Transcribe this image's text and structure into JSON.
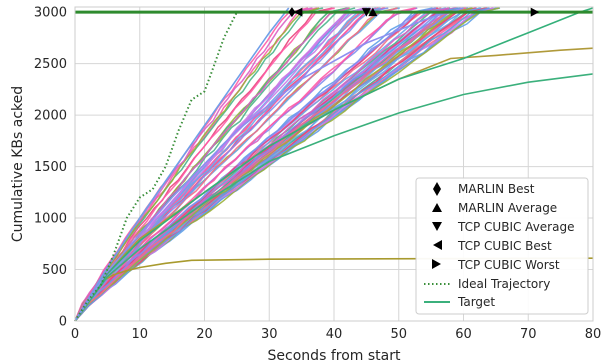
{
  "chart_data": {
    "type": "line",
    "xlabel": "Seconds from start",
    "ylabel": "Cumulative KBs acked",
    "xlim": [
      0,
      80
    ],
    "ylim": [
      0,
      3050
    ],
    "xticks": [
      0,
      10,
      20,
      30,
      40,
      50,
      60,
      70,
      80
    ],
    "yticks": [
      0,
      500,
      1000,
      1500,
      2000,
      2500,
      3000
    ],
    "grid": true,
    "legend_position": "lower-right",
    "target": {
      "name": "Target",
      "y": 3000,
      "color": "#2e8b2e"
    },
    "ideal_trajectory": {
      "name": "Ideal Trajectory",
      "color": "#3a8f3a",
      "points": [
        [
          0,
          0
        ],
        [
          2,
          200
        ],
        [
          4,
          350
        ],
        [
          6,
          650
        ],
        [
          8,
          1000
        ],
        [
          10,
          1200
        ],
        [
          12,
          1280
        ],
        [
          14,
          1500
        ],
        [
          16,
          1850
        ],
        [
          18,
          2150
        ],
        [
          20,
          2230
        ],
        [
          21,
          2400
        ],
        [
          23,
          2750
        ],
        [
          25,
          3000
        ]
      ]
    },
    "markers": [
      {
        "name": "MARLIN Best",
        "shape": "diamond",
        "x": 33.5,
        "y": 3000
      },
      {
        "name": "MARLIN Average",
        "shape": "triangle-up",
        "x": 46.0,
        "y": 3000
      },
      {
        "name": "TCP CUBIC Average",
        "shape": "triangle-down",
        "x": 45.0,
        "y": 3000
      },
      {
        "name": "TCP CUBIC Best",
        "shape": "triangle-left",
        "x": 34.5,
        "y": 3000
      },
      {
        "name": "TCP CUBIC Worst",
        "shape": "triangle-right",
        "x": 71.0,
        "y": 3000
      }
    ],
    "special_series": [
      {
        "color": "#a89a2e",
        "points": [
          [
            0,
            0
          ],
          [
            4,
            380
          ],
          [
            6,
            450
          ],
          [
            8,
            490
          ],
          [
            10,
            520
          ],
          [
            14,
            560
          ],
          [
            18,
            590
          ],
          [
            30,
            600
          ],
          [
            80,
            610
          ]
        ]
      },
      {
        "color": "#b09a3a",
        "points": [
          [
            0,
            0
          ],
          [
            5,
            470
          ],
          [
            10,
            800
          ],
          [
            20,
            1250
          ],
          [
            30,
            1700
          ],
          [
            40,
            2050
          ],
          [
            50,
            2350
          ],
          [
            58,
            2550
          ],
          [
            65,
            2580
          ],
          [
            75,
            2630
          ],
          [
            80,
            2650
          ]
        ]
      },
      {
        "color": "#3bb07c",
        "points": [
          [
            0,
            0
          ],
          [
            5,
            430
          ],
          [
            10,
            700
          ],
          [
            20,
            1150
          ],
          [
            30,
            1550
          ],
          [
            40,
            1800
          ],
          [
            50,
            2020
          ],
          [
            60,
            2200
          ],
          [
            70,
            2320
          ],
          [
            80,
            2400
          ]
        ]
      },
      {
        "color": "#34b07a",
        "points": [
          [
            0,
            0
          ],
          [
            5,
            460
          ],
          [
            10,
            780
          ],
          [
            20,
            1250
          ],
          [
            30,
            1700
          ],
          [
            40,
            2050
          ],
          [
            50,
            2350
          ],
          [
            60,
            2550
          ],
          [
            70,
            2800
          ],
          [
            78,
            3000
          ],
          [
            80,
            3040
          ]
        ]
      },
      {
        "color": "#8c8ff0",
        "points": [
          [
            0,
            0
          ],
          [
            5,
            480
          ],
          [
            15,
            1200
          ],
          [
            25,
            1850
          ],
          [
            35,
            2350
          ],
          [
            45,
            2700
          ],
          [
            55,
            2950
          ],
          [
            60,
            3040
          ]
        ]
      },
      {
        "color": "#6f9fe8",
        "points": [
          [
            0,
            0
          ],
          [
            5,
            520
          ],
          [
            10,
            1000
          ],
          [
            20,
            1900
          ],
          [
            30,
            2800
          ],
          [
            33,
            3040
          ]
        ]
      }
    ],
    "bundle": {
      "count": 70,
      "colors": [
        "#ff5aa5",
        "#e8457a",
        "#7f8ff0",
        "#5fa0e8",
        "#49b58c",
        "#9ab03a",
        "#c97ae8",
        "#f26b8a",
        "#6aa7ea",
        "#d95fc4"
      ],
      "finish_min": 33,
      "finish_max": 63,
      "end_y": 3040
    }
  }
}
